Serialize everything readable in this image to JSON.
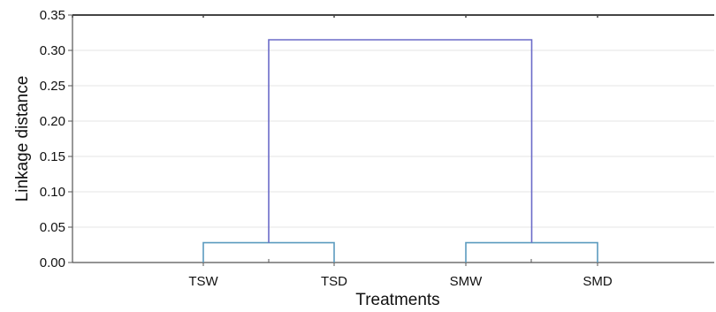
{
  "chart_data": {
    "type": "dendrogram",
    "title": "",
    "xlabel": "Treatments",
    "ylabel": "Linkage distance",
    "ylim": [
      0,
      0.35
    ],
    "yticks": [
      "0.00",
      "0.05",
      "0.10",
      "0.15",
      "0.20",
      "0.25",
      "0.30",
      "0.35"
    ],
    "leaves": [
      "TSW",
      "TSD",
      "SMW",
      "SMD"
    ],
    "merges": [
      {
        "cluster": [
          "TSW",
          "TSD"
        ],
        "distance": 0.028
      },
      {
        "cluster": [
          "SMW",
          "SMD"
        ],
        "distance": 0.028
      },
      {
        "cluster": [
          [
            "TSW",
            "TSD"
          ],
          [
            "SMW",
            "SMD"
          ]
        ],
        "distance": 0.315
      }
    ],
    "grid": true,
    "colors": {
      "low_links": "#5b9bbf",
      "top_link": "#6b6bc8",
      "grid": "#e4e4e4",
      "axis": "#555555"
    }
  }
}
